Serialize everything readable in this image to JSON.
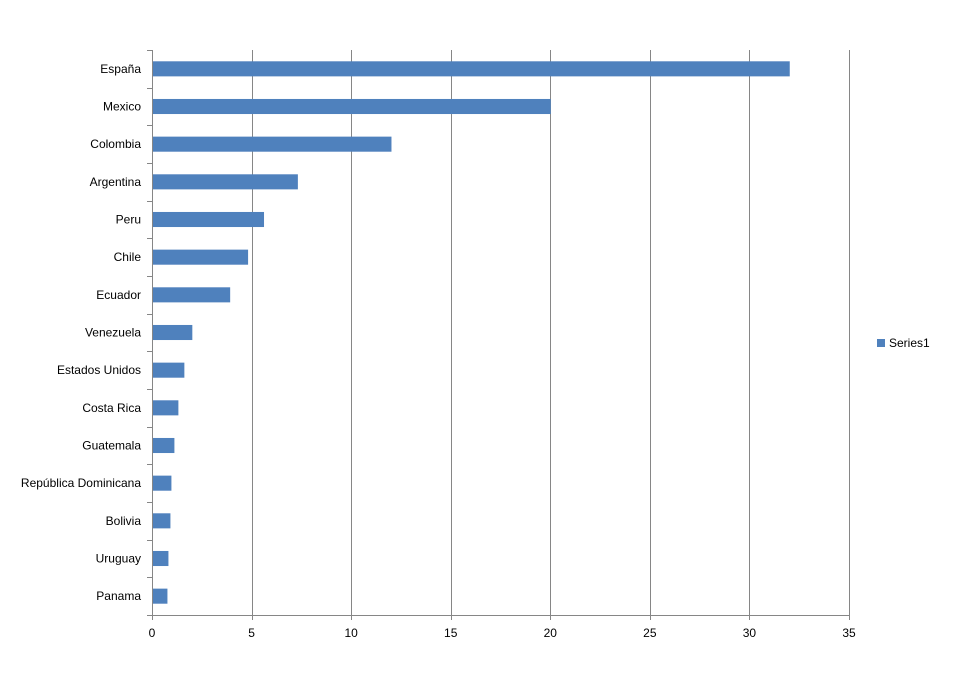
{
  "chart_data": {
    "type": "bar",
    "orientation": "horizontal",
    "categories": [
      "España",
      "Mexico",
      "Colombia",
      "Argentina",
      "Peru",
      "Chile",
      "Ecuador",
      "Venezuela",
      "Estados Unidos",
      "Costa Rica",
      "Guatemala",
      "República Dominicana",
      "Bolivia",
      "Uruguay",
      "Panama"
    ],
    "series": [
      {
        "name": "Series1",
        "color": "#4F81BD",
        "values": [
          32,
          20,
          12,
          7.3,
          5.6,
          4.8,
          3.9,
          2.0,
          1.6,
          1.3,
          1.1,
          0.95,
          0.9,
          0.8,
          0.75
        ]
      }
    ],
    "xlim": [
      0,
      35
    ],
    "xticks": [
      0,
      5,
      10,
      15,
      20,
      25,
      30,
      35
    ],
    "title": "",
    "xlabel": "",
    "ylabel": "",
    "grid": "vertical",
    "legend": "right"
  }
}
